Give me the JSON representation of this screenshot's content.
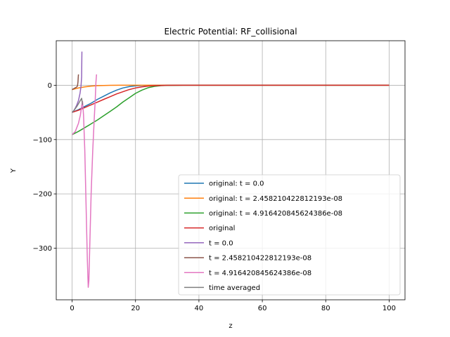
{
  "chart_data": {
    "type": "line",
    "title": "Electric Potential: RF_collisional",
    "xlabel": "z",
    "ylabel": "Y",
    "xlim": [
      -5,
      105
    ],
    "ylim": [
      -395,
      82
    ],
    "xticks": [
      0,
      20,
      40,
      60,
      80,
      100
    ],
    "yticks": [
      0,
      -100,
      -200,
      -300
    ],
    "xtick_labels": [
      "0",
      "20",
      "40",
      "60",
      "80",
      "100"
    ],
    "ytick_labels": [
      "0",
      "−100",
      "−200",
      "−300"
    ],
    "grid": true,
    "legend_position": "lower-right",
    "series": [
      {
        "name": "original: t = 0.0",
        "color": "#1f77b4",
        "x": [
          0,
          2,
          4,
          6,
          8,
          10,
          12,
          14,
          16,
          18,
          20,
          22,
          25,
          30,
          40,
          60,
          80,
          100
        ],
        "y": [
          -50,
          -45,
          -39,
          -33,
          -26,
          -20,
          -14,
          -9,
          -5,
          -2.5,
          -1,
          -0.4,
          -0.1,
          0,
          0,
          0,
          0,
          0
        ]
      },
      {
        "name": "original: t = 2.458210422812193e-08",
        "color": "#ff7f0e",
        "x": [
          0,
          2,
          4,
          6,
          8,
          10,
          12,
          15,
          20,
          40,
          60,
          80,
          100
        ],
        "y": [
          -8,
          -5,
          -3,
          -1.5,
          -0.7,
          -0.3,
          -0.1,
          0,
          0,
          0,
          0,
          0,
          0
        ]
      },
      {
        "name": "original: t = 4.916420845624386e-08",
        "color": "#2ca02c",
        "x": [
          0,
          2,
          4,
          6,
          8,
          10,
          12,
          14,
          16,
          18,
          20,
          22,
          24,
          26,
          28,
          30,
          35,
          40,
          60,
          80,
          100
        ],
        "y": [
          -91,
          -85,
          -78,
          -71,
          -64,
          -56,
          -48,
          -40,
          -31,
          -23,
          -15,
          -9,
          -4.5,
          -2,
          -0.7,
          -0.2,
          0,
          0,
          0,
          0,
          0
        ]
      },
      {
        "name": "original",
        "color": "#d62728",
        "x": [
          0,
          2,
          4,
          6,
          8,
          10,
          12,
          14,
          16,
          18,
          20,
          22,
          24,
          26,
          28,
          30,
          35,
          40,
          60,
          80,
          100
        ],
        "y": [
          -50,
          -46,
          -41,
          -36,
          -31,
          -26,
          -21,
          -16,
          -12,
          -8,
          -5,
          -3,
          -1.5,
          -0.7,
          -0.3,
          -0.1,
          0,
          0,
          0,
          0,
          0
        ]
      },
      {
        "name": "t = 0.0",
        "color": "#9467bd",
        "x": [
          0,
          0.5,
          1,
          1.5,
          2,
          2.5,
          2.8,
          3.0,
          3.05,
          3.1
        ],
        "y": [
          -50,
          -47,
          -42,
          -36,
          -28,
          -15,
          -2,
          15,
          40,
          62
        ]
      },
      {
        "name": "t = 2.458210422812193e-08",
        "color": "#8c564b",
        "x": [
          0,
          0.3,
          0.6,
          0.9,
          1.2,
          1.5,
          1.7,
          1.85,
          1.95,
          2.0
        ],
        "y": [
          -8,
          -7,
          -6,
          -5,
          -4,
          -3,
          -1,
          6,
          15,
          20
        ]
      },
      {
        "name": "t = 4.916420845624386e-08",
        "color": "#e377c2",
        "x": [
          0,
          1,
          2,
          2.6,
          3.0,
          3.3,
          3.6,
          4.0,
          4.4,
          4.8,
          5.1,
          5.3,
          5.6,
          6.0,
          6.5,
          7.0,
          7.3,
          7.5,
          7.7
        ],
        "y": [
          -91,
          -85,
          -70,
          -55,
          -38,
          -30,
          -55,
          -120,
          -220,
          -320,
          -372,
          -360,
          -290,
          -200,
          -120,
          -60,
          -25,
          5,
          20
        ]
      },
      {
        "name": "time averaged",
        "color": "#7f7f7f",
        "x": [
          0,
          0.5,
          1.0,
          1.5,
          2.0,
          2.5,
          3.0,
          3.3
        ],
        "y": [
          -50,
          -47,
          -43,
          -39,
          -34,
          -29,
          -24,
          -36
        ]
      }
    ]
  }
}
